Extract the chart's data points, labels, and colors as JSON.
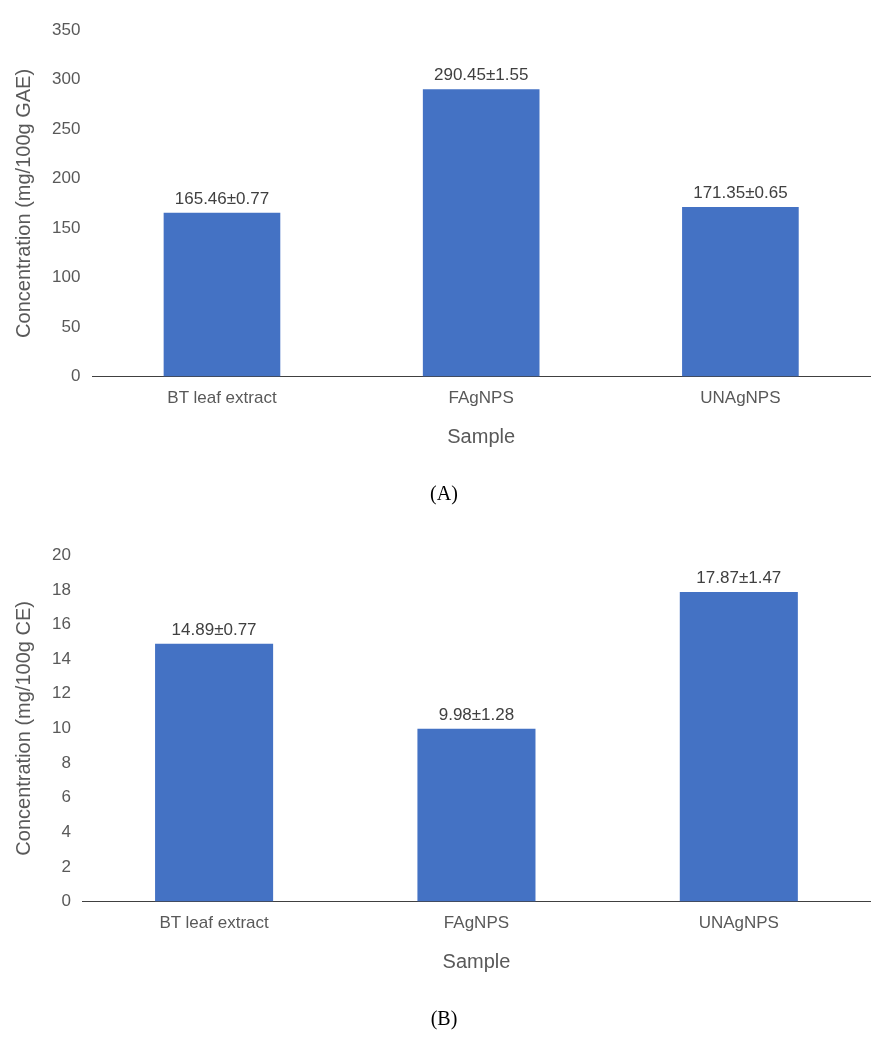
{
  "chart_data": [
    {
      "type": "bar",
      "xlabel": "Sample",
      "ylabel": "Concentration (mg/100g GAE)",
      "categories": [
        "BT leaf extract",
        "FAgNPS",
        "UNAgNPS"
      ],
      "values": [
        165.46,
        290.45,
        171.35
      ],
      "value_labels": [
        "165.46±0.77",
        "290.45±1.55",
        "171.35±0.65"
      ],
      "color": "#4472c4",
      "ylim": [
        0,
        350
      ],
      "yticks": [
        0,
        50,
        100,
        150,
        200,
        250,
        300,
        350
      ],
      "grid": false,
      "annotations": [
        "(A)"
      ]
    },
    {
      "type": "bar",
      "xlabel": "Sample",
      "ylabel": "Concentration (mg/100g CE)",
      "categories": [
        "BT leaf extract",
        "FAgNPS",
        "UNAgNPS"
      ],
      "values": [
        14.89,
        9.98,
        17.87
      ],
      "value_labels": [
        "14.89±0.77",
        "9.98±1.28",
        "17.87±1.47"
      ],
      "color": "#4472c4",
      "ylim": [
        0,
        20
      ],
      "yticks": [
        0,
        2,
        4,
        6,
        8,
        10,
        12,
        14,
        16,
        18,
        20
      ],
      "grid": false,
      "annotations": [
        "(B)"
      ]
    }
  ]
}
